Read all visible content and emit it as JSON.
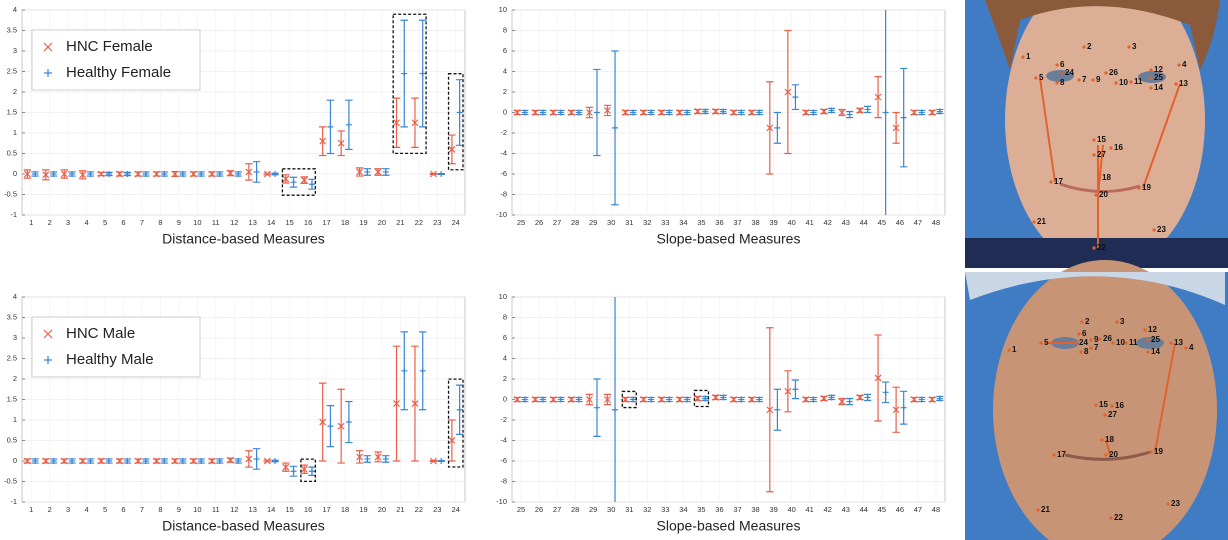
{
  "chart_data": [
    {
      "type": "errorbar",
      "xlabel": "Distance-based Measures",
      "categories": [
        "1",
        "2",
        "3",
        "4",
        "5",
        "6",
        "7",
        "8",
        "9",
        "10",
        "11",
        "12",
        "13",
        "14",
        "15",
        "16",
        "17",
        "18",
        "19",
        "20",
        "21",
        "22",
        "23",
        "24"
      ],
      "series": [
        {
          "name": "HNC Female",
          "color": "#e8604a",
          "marker": "x",
          "values": [
            0,
            -0.02,
            0,
            -0.02,
            0,
            0,
            0,
            0,
            0,
            0,
            0,
            0.02,
            0.05,
            0,
            -0.12,
            -0.15,
            0.8,
            0.75,
            0.05,
            0.05,
            1.25,
            1.25,
            0,
            0.6
          ],
          "errors": [
            0.1,
            0.12,
            0.1,
            0.1,
            0.04,
            0.05,
            0.05,
            0.05,
            0.06,
            0.05,
            0.05,
            0.06,
            0.2,
            0.02,
            0.1,
            0.08,
            0.35,
            0.3,
            0.1,
            0.08,
            0.6,
            0.6,
            0.01,
            0.35
          ]
        },
        {
          "name": "Healthy Female",
          "color": "#3a86d4",
          "marker": "+",
          "values": [
            0,
            0,
            0,
            0,
            0,
            0,
            0,
            0,
            0,
            0,
            0,
            0,
            0.05,
            0,
            -0.2,
            -0.25,
            1.15,
            1.2,
            0.05,
            0.05,
            2.45,
            2.45,
            0,
            1.5
          ],
          "errors": [
            0.05,
            0.05,
            0.05,
            0.05,
            0.04,
            0.04,
            0.05,
            0.05,
            0.05,
            0.05,
            0.05,
            0.05,
            0.25,
            0.02,
            0.12,
            0.12,
            0.65,
            0.6,
            0.08,
            0.08,
            1.3,
            1.3,
            0.01,
            0.8
          ]
        }
      ],
      "ylim": [
        -1,
        4
      ],
      "yticks": [
        -1,
        -0.5,
        0,
        0.5,
        1,
        1.5,
        2,
        2.5,
        3,
        3.5,
        4
      ],
      "grid": true,
      "legend": "upper left",
      "highlights": [
        [
          "15",
          "16"
        ],
        [
          "21",
          "22"
        ],
        [
          "24"
        ]
      ]
    },
    {
      "type": "errorbar",
      "xlabel": "Slope-based Measures",
      "categories": [
        "25",
        "26",
        "27",
        "28",
        "29",
        "30",
        "31",
        "32",
        "33",
        "34",
        "35",
        "36",
        "37",
        "38",
        "39",
        "40",
        "41",
        "42",
        "43",
        "44",
        "45",
        "46",
        "47",
        "48"
      ],
      "series": [
        {
          "color": "#e8604a",
          "marker": "x",
          "values": [
            0,
            0,
            0,
            0,
            0,
            0.2,
            0,
            0,
            0,
            0,
            0.1,
            0.1,
            0,
            0,
            -1.5,
            2,
            0,
            0.1,
            0,
            0.2,
            1.5,
            -1.5,
            0,
            0
          ],
          "errors": [
            0.2,
            0.2,
            0.2,
            0.2,
            0.5,
            0.5,
            0.2,
            0.2,
            0.2,
            0.2,
            0.2,
            0.2,
            0.2,
            0.2,
            4.5,
            6,
            0.2,
            0.2,
            0.3,
            0.2,
            2,
            1.5,
            0.2,
            0.2
          ]
        },
        {
          "color": "#3a86d4",
          "marker": "+",
          "values": [
            0,
            0,
            0,
            0,
            0,
            -1.5,
            0,
            0,
            0,
            0,
            0.1,
            0.1,
            0,
            0,
            -1.5,
            1.5,
            0,
            0.2,
            -0.2,
            0.3,
            0,
            -0.5,
            0,
            0.1
          ],
          "errors": [
            0.2,
            0.2,
            0.2,
            0.2,
            4.2,
            7.5,
            0.2,
            0.2,
            0.2,
            0.2,
            0.2,
            0.2,
            0.2,
            0.2,
            1.5,
            1.2,
            0.2,
            0.2,
            0.3,
            0.3,
            12,
            4.8,
            0.2,
            0.2
          ]
        }
      ],
      "ylim": [
        -10,
        10
      ],
      "yticks": [
        -10,
        -8,
        -6,
        -4,
        -2,
        0,
        2,
        4,
        6,
        8,
        10
      ],
      "grid": true
    },
    {
      "type": "errorbar",
      "xlabel": "Distance-based Measures",
      "categories": [
        "1",
        "2",
        "3",
        "4",
        "5",
        "6",
        "7",
        "8",
        "9",
        "10",
        "11",
        "12",
        "13",
        "14",
        "15",
        "16",
        "17",
        "18",
        "19",
        "20",
        "21",
        "22",
        "23",
        "24"
      ],
      "series": [
        {
          "name": "HNC Male",
          "color": "#e8604a",
          "marker": "x",
          "values": [
            0,
            0,
            0,
            0,
            0,
            0,
            0,
            0,
            0,
            0,
            0,
            0.02,
            0.05,
            0,
            -0.15,
            -0.2,
            0.95,
            0.85,
            0.1,
            0.1,
            1.4,
            1.4,
            0,
            0.5
          ],
          "errors": [
            0.05,
            0.05,
            0.05,
            0.05,
            0.05,
            0.05,
            0.05,
            0.05,
            0.05,
            0.05,
            0.05,
            0.05,
            0.2,
            0.02,
            0.1,
            0.1,
            0.95,
            0.9,
            0.15,
            0.12,
            1.4,
            1.4,
            0.01,
            0.5
          ]
        },
        {
          "name": "Healthy Male",
          "color": "#3a86d4",
          "marker": "+",
          "values": [
            0,
            0,
            0,
            0,
            0,
            0,
            0,
            0,
            0,
            0,
            0,
            0,
            0.05,
            0,
            -0.25,
            -0.25,
            0.85,
            0.95,
            0.05,
            0.05,
            2.2,
            2.2,
            0,
            1.25
          ],
          "errors": [
            0.05,
            0.05,
            0.05,
            0.05,
            0.05,
            0.05,
            0.05,
            0.05,
            0.05,
            0.05,
            0.05,
            0.05,
            0.25,
            0.02,
            0.12,
            0.1,
            0.5,
            0.5,
            0.08,
            0.08,
            0.95,
            0.95,
            0.01,
            0.6
          ]
        }
      ],
      "ylim": [
        -1,
        4
      ],
      "yticks": [
        -1,
        -0.5,
        0,
        0.5,
        1,
        1.5,
        2,
        2.5,
        3,
        3.5,
        4
      ],
      "grid": true,
      "legend": "upper left",
      "highlights": [
        [
          "16"
        ],
        [
          "24"
        ]
      ]
    },
    {
      "type": "errorbar",
      "xlabel": "Slope-based Measures",
      "categories": [
        "25",
        "26",
        "27",
        "28",
        "29",
        "30",
        "31",
        "32",
        "33",
        "34",
        "35",
        "36",
        "37",
        "38",
        "39",
        "40",
        "41",
        "42",
        "43",
        "44",
        "45",
        "46",
        "47",
        "48"
      ],
      "series": [
        {
          "color": "#e8604a",
          "marker": "x",
          "values": [
            0,
            0,
            0,
            0,
            0,
            0,
            0,
            0,
            0,
            0,
            0.1,
            0.2,
            0,
            0,
            -1,
            0.8,
            0,
            0.1,
            -0.2,
            0.2,
            2.1,
            -1,
            0,
            0
          ],
          "errors": [
            0.2,
            0.2,
            0.2,
            0.2,
            0.5,
            0.5,
            0.2,
            0.2,
            0.2,
            0.2,
            0.2,
            0.2,
            0.2,
            0.2,
            8,
            2,
            0.2,
            0.2,
            0.3,
            0.2,
            4.2,
            2.2,
            0.2,
            0.2
          ]
        },
        {
          "color": "#3a86d4",
          "marker": "+",
          "values": [
            0,
            0,
            0,
            0,
            -0.8,
            -1,
            0,
            0,
            0,
            0,
            0.1,
            0.2,
            0,
            0,
            -1,
            1,
            0,
            0.2,
            -0.2,
            0.2,
            0.7,
            -0.8,
            0,
            0.1
          ],
          "errors": [
            0.2,
            0.2,
            0.2,
            0.2,
            2.8,
            12,
            0.2,
            0.2,
            0.2,
            0.2,
            0.2,
            0.2,
            0.2,
            0.2,
            2,
            0.9,
            0.2,
            0.2,
            0.3,
            0.3,
            1,
            1.6,
            0.2,
            0.2
          ]
        }
      ],
      "ylim": [
        -10,
        10
      ],
      "yticks": [
        -10,
        -8,
        -6,
        -4,
        -2,
        0,
        2,
        4,
        6,
        8,
        10
      ],
      "grid": true,
      "highlights": [
        [
          "31"
        ],
        [
          "35"
        ]
      ]
    }
  ],
  "photos": [
    {
      "landmarks": [
        "1",
        "2",
        "3",
        "4",
        "5",
        "6",
        "7",
        "8",
        "9",
        "10",
        "11",
        "12",
        "13",
        "14",
        "15",
        "16",
        "17",
        "18",
        "19",
        "20",
        "21",
        "22",
        "23",
        "24",
        "25",
        "26",
        "27"
      ]
    },
    {
      "landmarks": [
        "1",
        "2",
        "3",
        "4",
        "5",
        "6",
        "7",
        "8",
        "9",
        "10",
        "11",
        "12",
        "13",
        "14",
        "15",
        "16",
        "17",
        "18",
        "19",
        "20",
        "21",
        "22",
        "23",
        "24",
        "25",
        "26",
        "27"
      ]
    }
  ]
}
